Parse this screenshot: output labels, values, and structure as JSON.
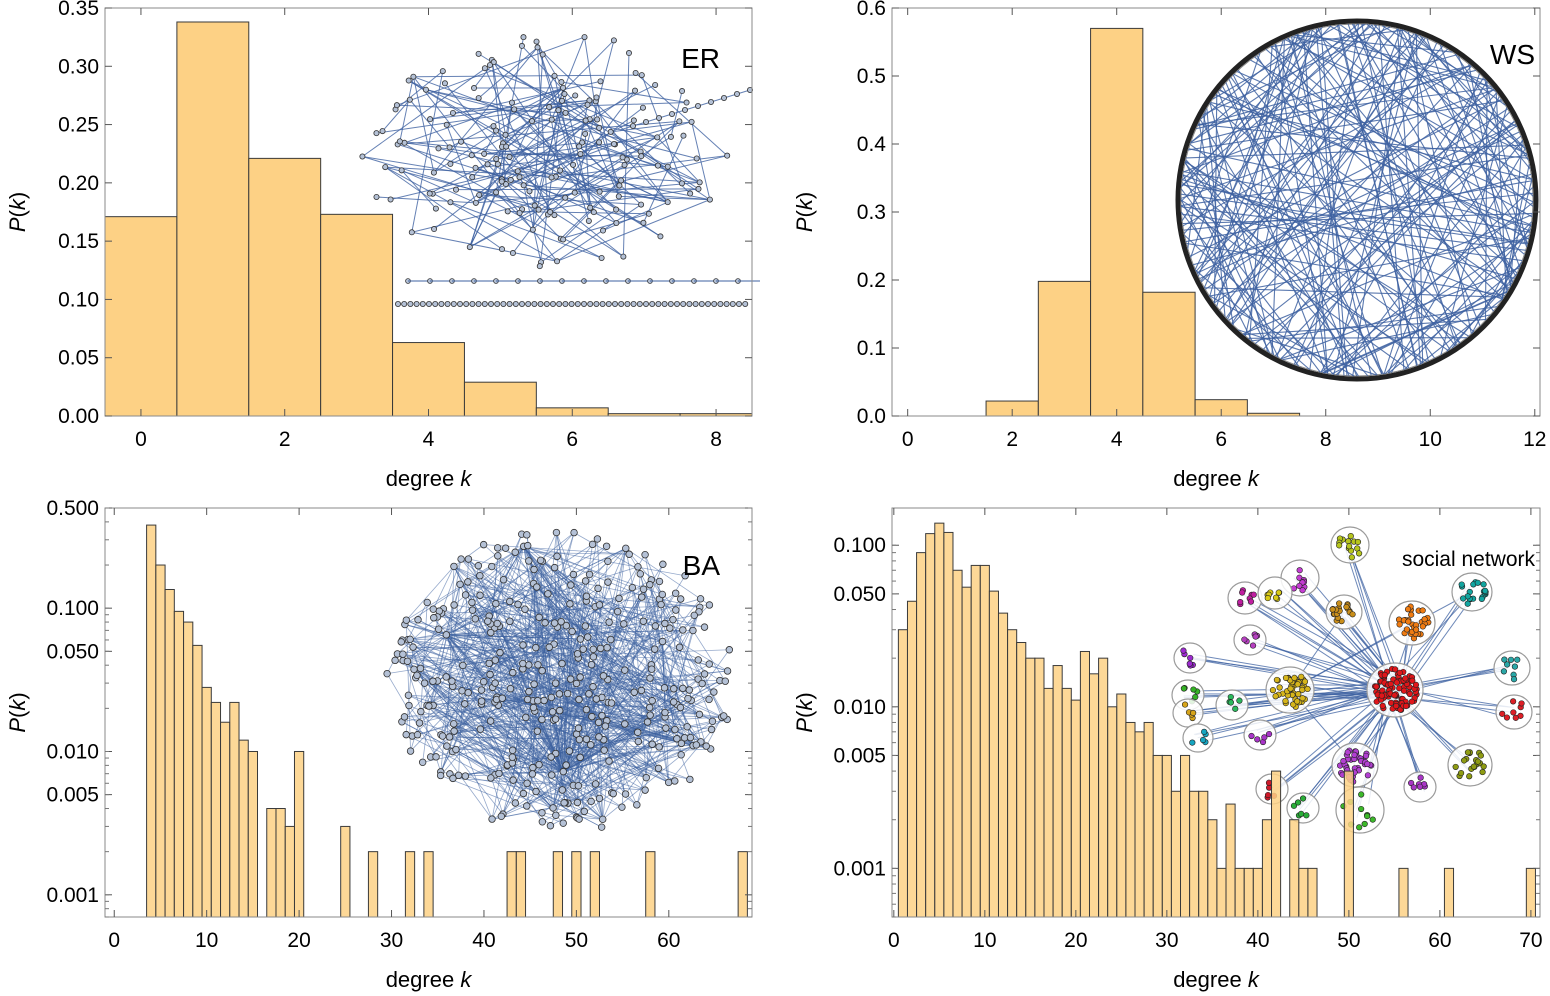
{
  "chart_data": [
    {
      "id": "er",
      "type": "bar",
      "scale": "linear",
      "tag": "ER",
      "xlabel": "degree",
      "xlabel_var": "k",
      "ylabel_prefix": "P(",
      "ylabel_var": "k",
      "ylabel_suffix": ")",
      "xlim": [
        -0.5,
        8.5
      ],
      "ylim": [
        0,
        0.35
      ],
      "xticks": [
        0,
        2,
        4,
        6,
        8
      ],
      "yticks": [
        0.0,
        0.05,
        0.1,
        0.15,
        0.2,
        0.25,
        0.3,
        0.35
      ],
      "ytick_labels": [
        "0.00",
        "0.05",
        "0.10",
        "0.15",
        "0.20",
        "0.25",
        "0.30",
        "0.35"
      ],
      "bar_width": 1,
      "x": [
        0,
        1,
        2,
        3,
        4,
        5,
        6,
        7,
        8
      ],
      "values": [
        0.171,
        0.338,
        0.221,
        0.173,
        0.063,
        0.029,
        0.007,
        0.002,
        0.002
      ]
    },
    {
      "id": "ws",
      "type": "bar",
      "scale": "linear",
      "tag": "WS",
      "xlabel": "degree",
      "xlabel_var": "k",
      "ylabel_prefix": "P(",
      "ylabel_var": "k",
      "ylabel_suffix": ")",
      "xlim": [
        -0.3,
        12.1
      ],
      "ylim": [
        0,
        0.6
      ],
      "xticks": [
        0,
        2,
        4,
        6,
        8,
        10,
        12
      ],
      "yticks": [
        0,
        0.1,
        0.2,
        0.3,
        0.4,
        0.5,
        0.6
      ],
      "ytick_labels": [
        "0.0",
        "0.1",
        "0.2",
        "0.3",
        "0.4",
        "0.5",
        "0.6"
      ],
      "bar_width": 1,
      "x": [
        2,
        3,
        4,
        5,
        6,
        7
      ],
      "values": [
        0.022,
        0.198,
        0.57,
        0.182,
        0.024,
        0.004
      ]
    },
    {
      "id": "ba",
      "type": "bar",
      "scale": "log",
      "tag": "BA",
      "xlabel": "degree",
      "xlabel_var": "k",
      "ylabel_prefix": "P(",
      "ylabel_var": "k",
      "ylabel_suffix": ")",
      "xlim": [
        -1,
        69
      ],
      "ylim": [
        0.0007,
        0.5
      ],
      "xticks": [
        0,
        10,
        20,
        30,
        40,
        50,
        60
      ],
      "yticks": [
        0.001,
        0.005,
        0.01,
        0.05,
        0.1,
        0.5
      ],
      "ytick_labels": [
        "0.001",
        "0.005",
        "0.010",
        "0.050",
        "0.100",
        "0.500"
      ],
      "bar_width": 1,
      "x": [
        4,
        5,
        6,
        7,
        8,
        9,
        10,
        11,
        12,
        13,
        14,
        15,
        17,
        18,
        19,
        20,
        25,
        28,
        32,
        34,
        43,
        44,
        48,
        50,
        52,
        58,
        68
      ],
      "values": [
        0.38,
        0.2,
        0.135,
        0.095,
        0.08,
        0.055,
        0.028,
        0.022,
        0.016,
        0.022,
        0.012,
        0.01,
        0.004,
        0.004,
        0.003,
        0.01,
        0.003,
        0.002,
        0.002,
        0.002,
        0.002,
        0.002,
        0.002,
        0.002,
        0.002,
        0.002,
        0.002
      ]
    },
    {
      "id": "social",
      "type": "bar",
      "scale": "log",
      "tag": "social network",
      "xlabel": "degree",
      "xlabel_var": "k",
      "ylabel_prefix": "P(",
      "ylabel_var": "k",
      "ylabel_suffix": ")",
      "xlim": [
        -0.2,
        71
      ],
      "ylim": [
        0.0005,
        0.17
      ],
      "xticks": [
        0,
        10,
        20,
        30,
        40,
        50,
        60,
        70
      ],
      "yticks": [
        0.001,
        0.005,
        0.01,
        0.05,
        0.1
      ],
      "ytick_labels": [
        "0.001",
        "0.005",
        "0.010",
        "0.050",
        "0.100"
      ],
      "bar_width": 1,
      "x": [
        1,
        2,
        3,
        4,
        5,
        6,
        7,
        8,
        9,
        10,
        11,
        12,
        13,
        14,
        15,
        16,
        17,
        18,
        19,
        20,
        21,
        22,
        23,
        24,
        25,
        26,
        27,
        28,
        29,
        30,
        31,
        32,
        33,
        34,
        35,
        36,
        37,
        38,
        39,
        40,
        41,
        42,
        44,
        45,
        46,
        50,
        56,
        61,
        70
      ],
      "values": [
        0.03,
        0.045,
        0.09,
        0.118,
        0.137,
        0.12,
        0.07,
        0.055,
        0.075,
        0.075,
        0.052,
        0.038,
        0.03,
        0.025,
        0.02,
        0.02,
        0.013,
        0.018,
        0.013,
        0.011,
        0.022,
        0.016,
        0.02,
        0.01,
        0.012,
        0.008,
        0.007,
        0.008,
        0.005,
        0.005,
        0.003,
        0.005,
        0.003,
        0.003,
        0.002,
        0.001,
        0.0025,
        0.001,
        0.001,
        0.001,
        0.002,
        0.004,
        0.002,
        0.001,
        0.001,
        0.004,
        0.001,
        0.001,
        0.001
      ]
    }
  ],
  "insets": {
    "er": {
      "description_icon": "random-graph-icon"
    },
    "ws": {
      "description_icon": "ring-lattice-graph-icon"
    },
    "ba": {
      "description_icon": "scale-free-graph-icon"
    },
    "social": {
      "description_icon": "clustered-community-graph-icon"
    }
  },
  "colors": {
    "bar_fill": "#fdd185",
    "bar_edge": "#3a3a3a",
    "network_edge": "#3e62a1",
    "network_node": "#b4c1d6"
  }
}
